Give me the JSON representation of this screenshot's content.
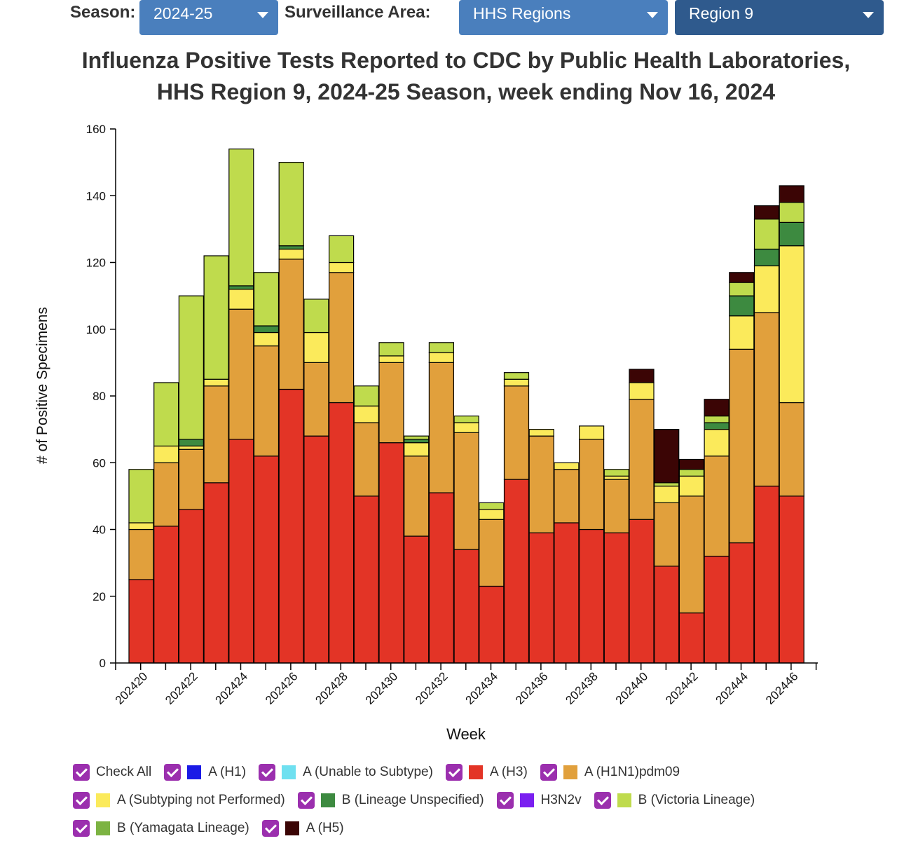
{
  "controls": {
    "season_label": "Season:",
    "season_value": "2024-25",
    "area_label": "Surveillance Area:",
    "area_value": "HHS Regions",
    "region_value": "Region 9"
  },
  "colors": {
    "A (H1)": "#1a1ae6",
    "A (Unable to Subtype)": "#6fe0f0",
    "A (H3)": "#e33426",
    "A (H1N1)pdm09": "#e1a03c",
    "A (Subtyping not Performed)": "#fbea5b",
    "B (Lineage Unspecified)": "#3d8a40",
    "H3N2v": "#7a1ff0",
    "B (Victoria Lineage)": "#bfdb4d",
    "B (Yamagata Lineage)": "#7cb342",
    "A (H5)": "#3b0505"
  },
  "legend": {
    "check_all": "Check All",
    "rows": [
      [
        "A (H1)",
        "A (Unable to Subtype)",
        "A (H3)",
        "A (H1N1)pdm09"
      ],
      [
        "A (Subtyping not Performed)",
        "B (Lineage Unspecified)",
        "H3N2v",
        "B (Victoria Lineage)"
      ],
      [
        "B (Yamagata Lineage)",
        "A (H5)"
      ]
    ]
  },
  "chart_data": {
    "type": "bar",
    "stacked": true,
    "title_line1": "Influenza Positive Tests Reported to CDC by Public Health Laboratories,",
    "title_line2": "HHS Region 9, 2024-25 Season, week ending Nov 16, 2024",
    "xlabel": "Week",
    "ylabel": "# of Positive Specimens",
    "ylim": [
      0,
      160
    ],
    "yticks": [
      0,
      20,
      40,
      60,
      80,
      100,
      120,
      140,
      160
    ],
    "categories": [
      "202420",
      "202421",
      "202422",
      "202423",
      "202424",
      "202425",
      "202426",
      "202427",
      "202428",
      "202429",
      "202430",
      "202431",
      "202432",
      "202433",
      "202434",
      "202435",
      "202436",
      "202437",
      "202438",
      "202439",
      "202440",
      "202441",
      "202442",
      "202443",
      "202444",
      "202445",
      "202446"
    ],
    "xtick_labels": [
      "202420",
      "202422",
      "202424",
      "202426",
      "202428",
      "202430",
      "202432",
      "202434",
      "202436",
      "202438",
      "202440",
      "202442",
      "202444",
      "202446"
    ],
    "series": [
      {
        "name": "A (H3)",
        "values": [
          25,
          41,
          46,
          54,
          67,
          62,
          82,
          68,
          78,
          50,
          66,
          38,
          51,
          34,
          23,
          55,
          39,
          42,
          40,
          39,
          43,
          29,
          15,
          32,
          36,
          53,
          50
        ]
      },
      {
        "name": "A (H1N1)pdm09",
        "values": [
          15,
          19,
          18,
          29,
          39,
          33,
          39,
          22,
          39,
          22,
          24,
          24,
          39,
          35,
          20,
          28,
          29,
          16,
          27,
          16,
          36,
          19,
          35,
          30,
          58,
          52,
          28
        ]
      },
      {
        "name": "A (Subtyping not Performed)",
        "values": [
          2,
          5,
          1,
          2,
          6,
          4,
          3,
          9,
          3,
          5,
          2,
          4,
          3,
          3,
          3,
          2,
          2,
          2,
          4,
          1,
          5,
          5,
          6,
          8,
          10,
          14,
          47
        ]
      },
      {
        "name": "B (Lineage Unspecified)",
        "values": [
          0,
          0,
          2,
          0,
          1,
          2,
          1,
          0,
          0,
          0,
          0,
          1,
          0,
          0,
          0,
          0,
          0,
          0,
          0,
          0,
          0,
          0,
          0,
          2,
          6,
          5,
          7
        ]
      },
      {
        "name": "B (Victoria Lineage)",
        "values": [
          16,
          19,
          43,
          37,
          41,
          16,
          25,
          10,
          8,
          6,
          4,
          1,
          3,
          2,
          2,
          2,
          0,
          0,
          0,
          2,
          0,
          1,
          2,
          2,
          4,
          9,
          6
        ]
      },
      {
        "name": "A (H5)",
        "values": [
          0,
          0,
          0,
          0,
          0,
          0,
          0,
          0,
          0,
          0,
          0,
          0,
          0,
          0,
          0,
          0,
          0,
          0,
          0,
          0,
          4,
          16,
          3,
          5,
          3,
          4,
          5
        ]
      }
    ]
  }
}
